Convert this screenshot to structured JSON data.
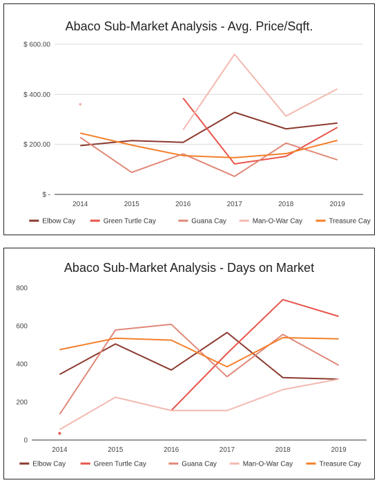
{
  "chart_data": [
    {
      "type": "line",
      "title": "Abaco Sub-Market Analysis - Avg. Price/Sqft.",
      "xlabel": "",
      "ylabel": "",
      "categories": [
        "2014",
        "2015",
        "2016",
        "2017",
        "2018",
        "2019"
      ],
      "ylim": [
        0,
        600
      ],
      "yticks": [
        0,
        200,
        400,
        600
      ],
      "ytick_labels": [
        "$ -",
        "$ 200.00",
        "$ 400.00",
        "$ 600.00"
      ],
      "grid": true,
      "legend_position": "bottom",
      "series": [
        {
          "name": "Elbow Cay",
          "color": "#8b3a2f",
          "values": [
            195,
            215,
            208,
            328,
            262,
            285
          ]
        },
        {
          "name": "Green Turtle Cay",
          "color": "#e8554a",
          "values": [
            null,
            null,
            385,
            122,
            152,
            268
          ]
        },
        {
          "name": "Guana Cay",
          "color": "#e08878",
          "values": [
            228,
            88,
            162,
            72,
            205,
            138
          ]
        },
        {
          "name": "Man-O-War Cay",
          "color": "#f2b9b0",
          "values": [
            360,
            null,
            258,
            560,
            313,
            422
          ]
        },
        {
          "name": "Treasure Cay",
          "color": "#f47f2a",
          "values": [
            245,
            197,
            155,
            147,
            163,
            216
          ]
        }
      ]
    },
    {
      "type": "line",
      "title": "Abaco Sub-Market Analysis - Days on Market",
      "xlabel": "",
      "ylabel": "",
      "categories": [
        "2014",
        "2015",
        "2016",
        "2017",
        "2018",
        "2019"
      ],
      "ylim": [
        0,
        800
      ],
      "yticks": [
        0,
        200,
        400,
        600,
        800
      ],
      "ytick_labels": [
        "0",
        "200",
        "400",
        "600",
        "800"
      ],
      "grid": false,
      "legend_position": "bottom",
      "series": [
        {
          "name": "Elbow Cay",
          "color": "#8b3a2f",
          "values": [
            345,
            505,
            368,
            565,
            328,
            320
          ]
        },
        {
          "name": "Green Turtle Cay",
          "color": "#e8554a",
          "values": [
            35,
            null,
            155,
            455,
            738,
            650
          ]
        },
        {
          "name": "Guana Cay",
          "color": "#e08878",
          "values": [
            135,
            578,
            608,
            333,
            555,
            393
          ]
        },
        {
          "name": "Man-O-War Cay",
          "color": "#f2b9b0",
          "values": [
            55,
            225,
            155,
            155,
            265,
            320
          ]
        },
        {
          "name": "Treasure Cay",
          "color": "#f47f2a",
          "values": [
            475,
            535,
            525,
            385,
            538,
            532
          ]
        }
      ]
    }
  ]
}
